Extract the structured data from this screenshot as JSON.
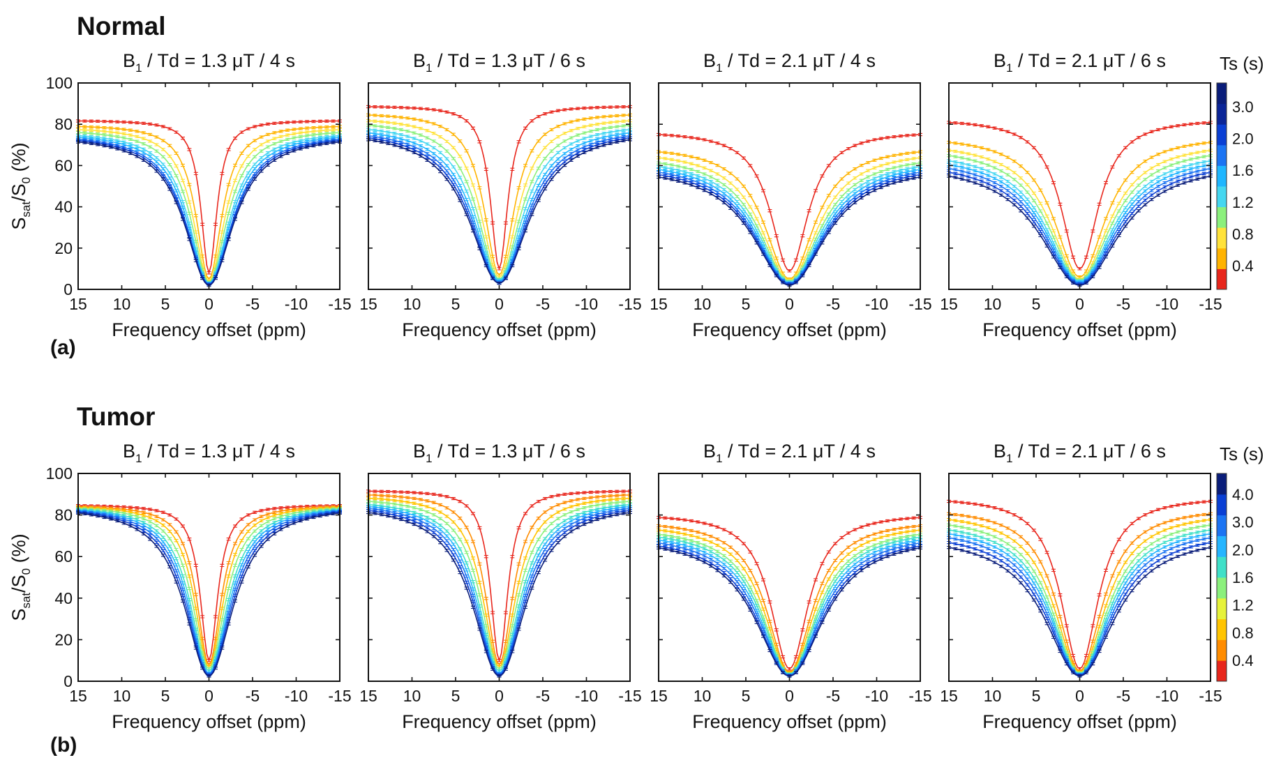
{
  "chart_data": [
    {
      "type": "line",
      "section": "Normal",
      "panel_label": "(a)",
      "ylabel_main": "S",
      "ylabel_sub": "sat",
      "ylabel_mid": "/S",
      "ylabel_sub2": "0",
      "ylabel_tail": " (%)",
      "xlabel": "Frequency offset (ppm)",
      "xlim": [
        15,
        -15
      ],
      "ylim": [
        0,
        100
      ],
      "xticks": [
        "15",
        "10",
        "5",
        "0",
        "-5",
        "-10",
        "-15"
      ],
      "yticks": [
        "0",
        "20",
        "40",
        "60",
        "80",
        "100"
      ],
      "colorbar": {
        "title": "Ts (s)",
        "ticks": [
          "3.0",
          "2.0",
          "1.6",
          "1.2",
          "0.8",
          "0.4"
        ],
        "colors": [
          "#e8261c",
          "#ffb300",
          "#ffe23a",
          "#8bf07c",
          "#45d7f0",
          "#1fb6ff",
          "#1b74f3",
          "#0a3fd4",
          "#0b2597",
          "#0a1d7a"
        ]
      },
      "subplots": [
        {
          "title_pre": "B",
          "title_sub": "1",
          "title_post": " / Td = 1.3 μT / 4 s",
          "series": [
            {
              "Ts": 0.4,
              "plateau": 82,
              "min": 8,
              "width": 1.1,
              "color": "#e8261c"
            },
            {
              "Ts": 0.8,
              "plateau": 80,
              "min": 5,
              "width": 1.8,
              "color": "#ffb300"
            },
            {
              "Ts": 1.2,
              "plateau": 79,
              "min": 4,
              "width": 2.2,
              "color": "#ffe23a"
            },
            {
              "Ts": 1.6,
              "plateau": 78,
              "min": 3.5,
              "width": 2.5,
              "color": "#8bf07c"
            },
            {
              "Ts": 2.0,
              "plateau": 77,
              "min": 3,
              "width": 2.8,
              "color": "#45d7f0"
            },
            {
              "Ts": 2.4,
              "plateau": 76.5,
              "min": 3,
              "width": 3.0,
              "color": "#1fb6ff"
            },
            {
              "Ts": 2.8,
              "plateau": 76,
              "min": 2.5,
              "width": 3.2,
              "color": "#1b74f3"
            },
            {
              "Ts": 3.2,
              "plateau": 75.5,
              "min": 2.5,
              "width": 3.3,
              "color": "#0a3fd4"
            },
            {
              "Ts": 3.6,
              "plateau": 75,
              "min": 2,
              "width": 3.4,
              "color": "#0a1d7a"
            }
          ]
        },
        {
          "title_pre": "B",
          "title_sub": "1",
          "title_post": " / Td = 1.3 μT / 6 s",
          "series": [
            {
              "Ts": 0.4,
              "plateau": 89,
              "min": 10,
              "width": 1.2,
              "color": "#e8261c"
            },
            {
              "Ts": 0.8,
              "plateau": 86,
              "min": 7,
              "width": 2.1,
              "color": "#ffb300"
            },
            {
              "Ts": 1.2,
              "plateau": 84,
              "min": 6,
              "width": 2.6,
              "color": "#ffe23a"
            },
            {
              "Ts": 1.6,
              "plateau": 82.5,
              "min": 5,
              "width": 3.0,
              "color": "#8bf07c"
            },
            {
              "Ts": 2.0,
              "plateau": 81,
              "min": 4.5,
              "width": 3.3,
              "color": "#45d7f0"
            },
            {
              "Ts": 2.4,
              "plateau": 80,
              "min": 4,
              "width": 3.6,
              "color": "#1fb6ff"
            },
            {
              "Ts": 2.8,
              "plateau": 79,
              "min": 3.5,
              "width": 3.8,
              "color": "#1b74f3"
            },
            {
              "Ts": 3.2,
              "plateau": 78.5,
              "min": 3,
              "width": 4.0,
              "color": "#0a3fd4"
            },
            {
              "Ts": 3.6,
              "plateau": 78,
              "min": 3,
              "width": 4.2,
              "color": "#0a1d7a"
            }
          ]
        },
        {
          "title_pre": "B",
          "title_sub": "1",
          "title_post": " / Td = 2.1 μT / 4 s",
          "series": [
            {
              "Ts": 0.4,
              "plateau": 77,
              "min": 9,
              "width": 2.6,
              "color": "#e8261c"
            },
            {
              "Ts": 0.8,
              "plateau": 70,
              "min": 5,
              "width": 3.5,
              "color": "#ffb300"
            },
            {
              "Ts": 1.2,
              "plateau": 68,
              "min": 4.5,
              "width": 4.0,
              "color": "#ffe23a"
            },
            {
              "Ts": 1.6,
              "plateau": 66,
              "min": 4,
              "width": 4.3,
              "color": "#8bf07c"
            },
            {
              "Ts": 2.0,
              "plateau": 64.5,
              "min": 3.5,
              "width": 4.5,
              "color": "#45d7f0"
            },
            {
              "Ts": 2.4,
              "plateau": 63.5,
              "min": 3,
              "width": 4.7,
              "color": "#1fb6ff"
            },
            {
              "Ts": 2.8,
              "plateau": 62.5,
              "min": 3,
              "width": 4.9,
              "color": "#1b74f3"
            },
            {
              "Ts": 3.2,
              "plateau": 61.5,
              "min": 2.5,
              "width": 5.0,
              "color": "#0a3fd4"
            },
            {
              "Ts": 3.6,
              "plateau": 60.5,
              "min": 2,
              "width": 5.1,
              "color": "#0a1d7a"
            }
          ]
        },
        {
          "title_pre": "B",
          "title_sub": "1",
          "title_post": " / Td = 2.1 μT / 6 s",
          "series": [
            {
              "Ts": 0.4,
              "plateau": 83,
              "min": 10,
              "width": 2.6,
              "color": "#e8261c"
            },
            {
              "Ts": 0.8,
              "plateau": 75,
              "min": 6,
              "width": 3.6,
              "color": "#ffb300"
            },
            {
              "Ts": 1.2,
              "plateau": 72,
              "min": 5,
              "width": 4.1,
              "color": "#ffe23a"
            },
            {
              "Ts": 1.6,
              "plateau": 70,
              "min": 4.5,
              "width": 4.4,
              "color": "#8bf07c"
            },
            {
              "Ts": 2.0,
              "plateau": 68,
              "min": 4,
              "width": 4.7,
              "color": "#45d7f0"
            },
            {
              "Ts": 2.4,
              "plateau": 66.5,
              "min": 3.5,
              "width": 4.9,
              "color": "#1fb6ff"
            },
            {
              "Ts": 2.8,
              "plateau": 65,
              "min": 3,
              "width": 5.1,
              "color": "#1b74f3"
            },
            {
              "Ts": 3.2,
              "plateau": 63.5,
              "min": 2.5,
              "width": 5.3,
              "color": "#0a3fd4"
            },
            {
              "Ts": 3.6,
              "plateau": 62,
              "min": 2,
              "width": 5.5,
              "color": "#0a1d7a"
            }
          ]
        }
      ]
    },
    {
      "type": "line",
      "section": "Tumor",
      "panel_label": "(b)",
      "ylabel_main": "S",
      "ylabel_sub": "sat",
      "ylabel_mid": "/S",
      "ylabel_sub2": "0",
      "ylabel_tail": " (%)",
      "xlabel": "Frequency offset (ppm)",
      "xlim": [
        15,
        -15
      ],
      "ylim": [
        0,
        100
      ],
      "xticks": [
        "15",
        "10",
        "5",
        "0",
        "-5",
        "-10",
        "-15"
      ],
      "yticks": [
        "0",
        "20",
        "40",
        "60",
        "80",
        "100"
      ],
      "colorbar": {
        "title": "Ts (s)",
        "ticks": [
          "4.0",
          "3.0",
          "2.0",
          "1.6",
          "1.2",
          "0.8",
          "0.4"
        ],
        "colors": [
          "#e8261c",
          "#ff8c00",
          "#ffc400",
          "#e6f23a",
          "#8bf07c",
          "#3fe0c8",
          "#25b5ff",
          "#1b74f3",
          "#0a3fd4",
          "#0a1d7a"
        ]
      },
      "subplots": [
        {
          "title_pre": "B",
          "title_sub": "1",
          "title_post": " / Td = 1.3 μT / 4 s",
          "series": [
            {
              "Ts": 0.4,
              "plateau": 85,
              "min": 10,
              "width": 1.2,
              "color": "#e8261c"
            },
            {
              "Ts": 0.8,
              "plateau": 85,
              "min": 8,
              "width": 1.7,
              "color": "#ff8c00"
            },
            {
              "Ts": 1.2,
              "plateau": 85,
              "min": 7,
              "width": 2.0,
              "color": "#ffc400"
            },
            {
              "Ts": 1.6,
              "plateau": 85,
              "min": 6,
              "width": 2.3,
              "color": "#8bf07c"
            },
            {
              "Ts": 2.0,
              "plateau": 85,
              "min": 5,
              "width": 2.6,
              "color": "#3fe0c8"
            },
            {
              "Ts": 2.4,
              "plateau": 85,
              "min": 4,
              "width": 2.8,
              "color": "#25b5ff"
            },
            {
              "Ts": 3.0,
              "plateau": 85,
              "min": 3.5,
              "width": 3.0,
              "color": "#1b74f3"
            },
            {
              "Ts": 3.5,
              "plateau": 85,
              "min": 3,
              "width": 3.2,
              "color": "#0a3fd4"
            },
            {
              "Ts": 4.0,
              "plateau": 85,
              "min": 2.5,
              "width": 3.4,
              "color": "#0a1d7a"
            }
          ]
        },
        {
          "title_pre": "B",
          "title_sub": "1",
          "title_post": " / Td = 1.3 μT / 6 s",
          "series": [
            {
              "Ts": 0.4,
              "plateau": 92,
              "min": 10,
              "width": 1.2,
              "color": "#e8261c"
            },
            {
              "Ts": 0.8,
              "plateau": 91,
              "min": 8,
              "width": 1.9,
              "color": "#ff8c00"
            },
            {
              "Ts": 1.2,
              "plateau": 90,
              "min": 7,
              "width": 2.3,
              "color": "#ffc400"
            },
            {
              "Ts": 1.6,
              "plateau": 89,
              "min": 6,
              "width": 2.6,
              "color": "#8bf07c"
            },
            {
              "Ts": 2.0,
              "plateau": 88,
              "min": 5,
              "width": 2.9,
              "color": "#3fe0c8"
            },
            {
              "Ts": 2.4,
              "plateau": 87.5,
              "min": 4,
              "width": 3.1,
              "color": "#25b5ff"
            },
            {
              "Ts": 3.0,
              "plateau": 87,
              "min": 3.5,
              "width": 3.3,
              "color": "#1b74f3"
            },
            {
              "Ts": 3.5,
              "plateau": 86.5,
              "min": 3,
              "width": 3.5,
              "color": "#0a3fd4"
            },
            {
              "Ts": 4.0,
              "plateau": 86,
              "min": 2.5,
              "width": 3.7,
              "color": "#0a1d7a"
            }
          ]
        },
        {
          "title_pre": "B",
          "title_sub": "1",
          "title_post": " / Td = 2.1 μT / 4 s",
          "series": [
            {
              "Ts": 0.4,
              "plateau": 81,
              "min": 6,
              "width": 2.6,
              "color": "#e8261c"
            },
            {
              "Ts": 0.8,
              "plateau": 78,
              "min": 4.5,
              "width": 3.2,
              "color": "#ff8c00"
            },
            {
              "Ts": 1.2,
              "plateau": 76.5,
              "min": 4,
              "width": 3.5,
              "color": "#ffc400"
            },
            {
              "Ts": 1.6,
              "plateau": 75,
              "min": 3.5,
              "width": 3.8,
              "color": "#8bf07c"
            },
            {
              "Ts": 2.0,
              "plateau": 74,
              "min": 3.5,
              "width": 4.0,
              "color": "#3fe0c8"
            },
            {
              "Ts": 2.4,
              "plateau": 73,
              "min": 3,
              "width": 4.2,
              "color": "#25b5ff"
            },
            {
              "Ts": 3.0,
              "plateau": 72,
              "min": 3,
              "width": 4.4,
              "color": "#1b74f3"
            },
            {
              "Ts": 3.5,
              "plateau": 71,
              "min": 2.5,
              "width": 4.6,
              "color": "#0a3fd4"
            },
            {
              "Ts": 4.0,
              "plateau": 70.5,
              "min": 2.5,
              "width": 4.8,
              "color": "#0a1d7a"
            }
          ]
        },
        {
          "title_pre": "B",
          "title_sub": "1",
          "title_post": " / Td = 2.1 μT / 6 s",
          "series": [
            {
              "Ts": 0.4,
              "plateau": 89,
              "min": 6,
              "width": 2.6,
              "color": "#e8261c"
            },
            {
              "Ts": 0.8,
              "plateau": 84,
              "min": 5,
              "width": 3.2,
              "color": "#ff8c00"
            },
            {
              "Ts": 1.2,
              "plateau": 82,
              "min": 4.5,
              "width": 3.6,
              "color": "#ffc400"
            },
            {
              "Ts": 1.6,
              "plateau": 80,
              "min": 4,
              "width": 3.9,
              "color": "#8bf07c"
            },
            {
              "Ts": 2.0,
              "plateau": 78,
              "min": 3.5,
              "width": 4.1,
              "color": "#3fe0c8"
            },
            {
              "Ts": 2.4,
              "plateau": 76.5,
              "min": 3.5,
              "width": 4.3,
              "color": "#25b5ff"
            },
            {
              "Ts": 3.0,
              "plateau": 75,
              "min": 3,
              "width": 4.5,
              "color": "#1b74f3"
            },
            {
              "Ts": 3.5,
              "plateau": 73,
              "min": 3,
              "width": 4.7,
              "color": "#0a3fd4"
            },
            {
              "Ts": 4.0,
              "plateau": 71,
              "min": 2.5,
              "width": 4.9,
              "color": "#0a1d7a"
            }
          ]
        }
      ]
    }
  ]
}
